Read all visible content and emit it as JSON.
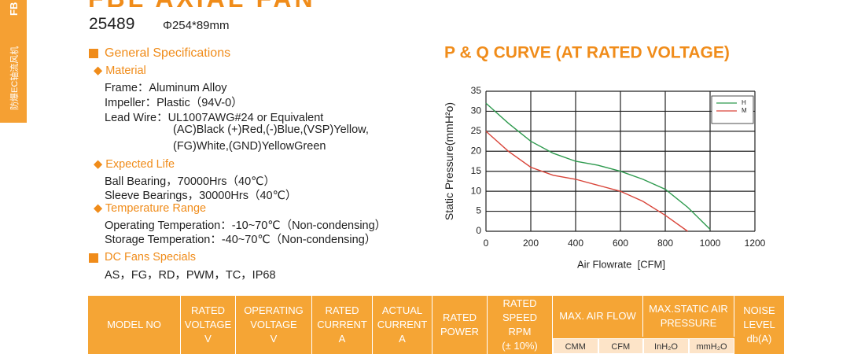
{
  "side_tab": {
    "cn": "防爆EC轴流风机",
    "code": "FB"
  },
  "header": {
    "title": "FBL AXIAL FAN",
    "model": "25489",
    "size": "Φ254*89mm"
  },
  "specs": {
    "heading": "General Specifications",
    "material": {
      "title": "Material",
      "lines": [
        "Frame：Aluminum Alloy",
        "Impeller：Plastic（94V-0）",
        "Lead Wire：UL1007AWG#24 or Equivalent",
        "(AC)Black (+)Red,(-)Blue,(VSP)Yellow,",
        "(FG)White,(GND)YellowGreen"
      ]
    },
    "life": {
      "title": "Expected Life",
      "lines": [
        "Ball Bearing，70000Hrs（40℃）",
        "Sleeve Bearings，30000Hrs（40℃）"
      ]
    },
    "temperature": {
      "title": "Temperature Range",
      "lines": [
        "Operating Temperation：-10~70℃（Non-condensing）",
        "Storage Temperation：-40~70℃（Non-condensing）"
      ]
    },
    "dc_heading": "DC Fans Specials",
    "dc_line": "AS，FG，RD，PWM，TC，IP68"
  },
  "chart_data": {
    "type": "line",
    "title": "P & Q CURVE (AT RATED VOLTAGE)",
    "x_label": "Air Flowrate  [CFM]",
    "y_label": "Static Pressure(mmH²o)",
    "x": [
      0,
      100,
      200,
      300,
      400,
      500,
      600,
      700,
      800,
      900,
      1000
    ],
    "series": [
      {
        "name": "H",
        "color": "#2e9a4e",
        "values": [
          32,
          27,
          22.5,
          19.5,
          17.5,
          16.5,
          15,
          13,
          10.5,
          6,
          0.5
        ]
      },
      {
        "name": "M",
        "color": "#d9453a",
        "values": [
          25,
          20,
          16,
          14,
          13,
          11.5,
          10,
          7.5,
          4,
          0,
          null
        ]
      }
    ],
    "xlim": [
      0,
      1200
    ],
    "xticks": [
      0,
      200,
      400,
      600,
      800,
      1000,
      1200
    ],
    "ylim": [
      0,
      35
    ],
    "yticks": [
      0,
      5,
      10,
      15,
      20,
      25,
      30,
      35
    ],
    "grid": true,
    "legend": "upper right"
  },
  "table": {
    "headers": [
      "MODEL NO",
      "RATED\nVOLTAGE\nV",
      "OPERATING\nVOLTAGE\nV",
      "RATED\nCURRENT\nA",
      "ACTUAL\nCURRENT\nA",
      "RATED\nPOWER",
      "RATED SPEED\nRPM\n(± 10%)",
      "MAX. AIR FLOW",
      "MAX.STATIC AIR\nPRESSURE",
      "NOISE\nLEVEL\ndb(A)"
    ],
    "subheaders": [
      "CMM",
      "CFM",
      "InH₂O",
      "mmH₂O"
    ]
  }
}
